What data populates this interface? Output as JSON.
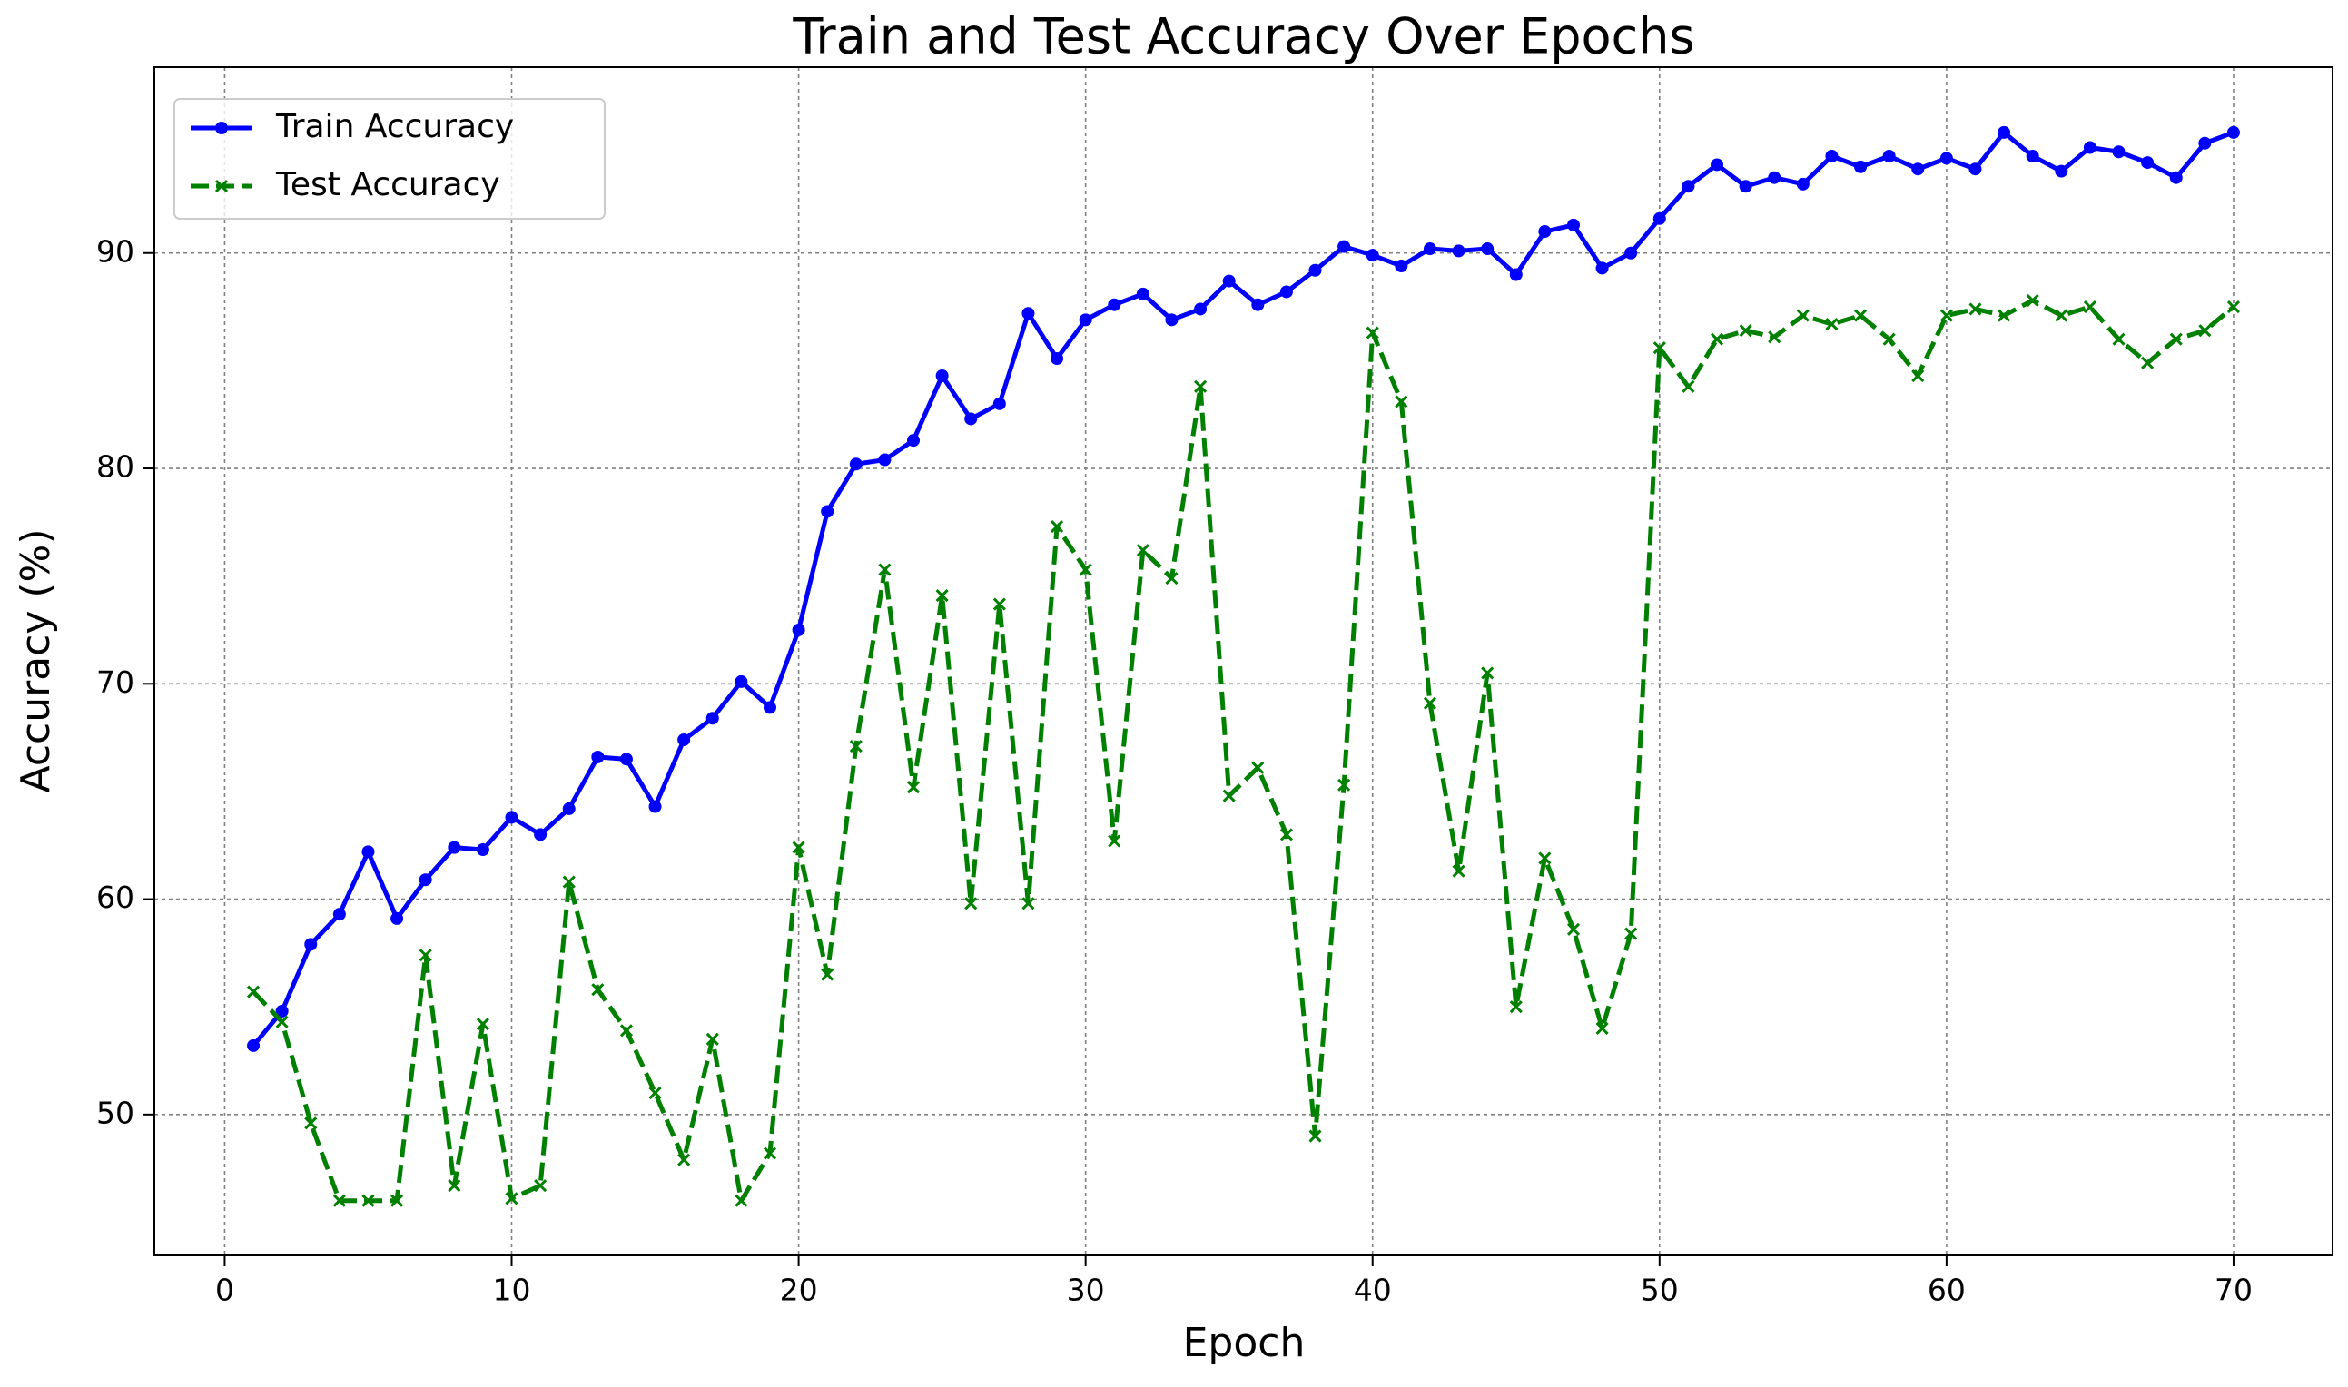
{
  "chart_data": {
    "type": "line",
    "title": "Train and Test Accuracy Over Epochs",
    "x_label": "Epoch",
    "y_label": "Accuracy (%)",
    "x": [
      1,
      2,
      3,
      4,
      5,
      6,
      7,
      8,
      9,
      10,
      11,
      12,
      13,
      14,
      15,
      16,
      17,
      18,
      19,
      20,
      21,
      22,
      23,
      24,
      25,
      26,
      27,
      28,
      29,
      30,
      31,
      32,
      33,
      34,
      35,
      36,
      37,
      38,
      39,
      40,
      41,
      42,
      43,
      44,
      45,
      46,
      47,
      48,
      49,
      50,
      51,
      52,
      53,
      54,
      55,
      56,
      57,
      58,
      59,
      60,
      61,
      62,
      63,
      64,
      65,
      66,
      67,
      68,
      69,
      70
    ],
    "series": [
      {
        "name": "Train Accuracy",
        "color": "#0000ff",
        "linestyle": "solid",
        "marker": "circle",
        "values": [
          53.2,
          54.8,
          57.9,
          59.3,
          62.2,
          59.1,
          60.9,
          62.4,
          62.3,
          63.8,
          63.0,
          64.2,
          66.6,
          66.5,
          64.3,
          67.4,
          68.4,
          70.1,
          68.9,
          72.5,
          78.0,
          80.2,
          80.4,
          81.3,
          84.3,
          82.3,
          83.0,
          87.2,
          85.1,
          86.9,
          87.6,
          88.1,
          86.9,
          87.4,
          88.7,
          87.6,
          88.2,
          89.2,
          90.3,
          89.9,
          89.4,
          90.2,
          90.1,
          90.2,
          89.0,
          91.0,
          91.3,
          89.3,
          90.0,
          91.6,
          93.1,
          94.1,
          93.1,
          93.5,
          93.2,
          94.5,
          94.0,
          94.5,
          93.9,
          94.4,
          93.9,
          95.6,
          94.5,
          93.8,
          94.9,
          94.7,
          94.2,
          93.5,
          95.1,
          95.6
        ]
      },
      {
        "name": "Test Accuracy",
        "color": "#008000",
        "linestyle": "dashed",
        "marker": "x",
        "values": [
          55.7,
          54.3,
          49.6,
          46.0,
          46.0,
          46.0,
          57.4,
          46.7,
          54.2,
          46.1,
          46.7,
          60.8,
          55.8,
          53.9,
          51.0,
          47.9,
          53.5,
          46.0,
          48.2,
          62.4,
          56.5,
          67.1,
          75.3,
          65.2,
          74.1,
          59.8,
          73.7,
          59.8,
          77.3,
          75.3,
          62.7,
          76.2,
          74.9,
          83.8,
          64.8,
          66.1,
          63.0,
          49.0,
          65.3,
          86.3,
          83.1,
          69.1,
          61.3,
          70.5,
          55.0,
          61.9,
          58.6,
          54.0,
          58.4,
          85.6,
          83.8,
          86.0,
          86.4,
          86.1,
          87.1,
          86.7,
          87.1,
          86.0,
          84.3,
          87.1,
          87.4,
          87.1,
          87.8,
          87.1,
          87.5,
          86.0,
          84.9,
          86.0,
          86.4,
          87.5
        ]
      }
    ],
    "xlim": [
      -2.45,
      73.45
    ],
    "xticks": [
      0,
      10,
      20,
      30,
      40,
      50,
      60,
      70
    ],
    "ylim": [
      43.46,
      98.63
    ],
    "yticks": [
      50,
      60,
      70,
      80,
      90
    ],
    "grid": true,
    "legend": "upper left"
  }
}
